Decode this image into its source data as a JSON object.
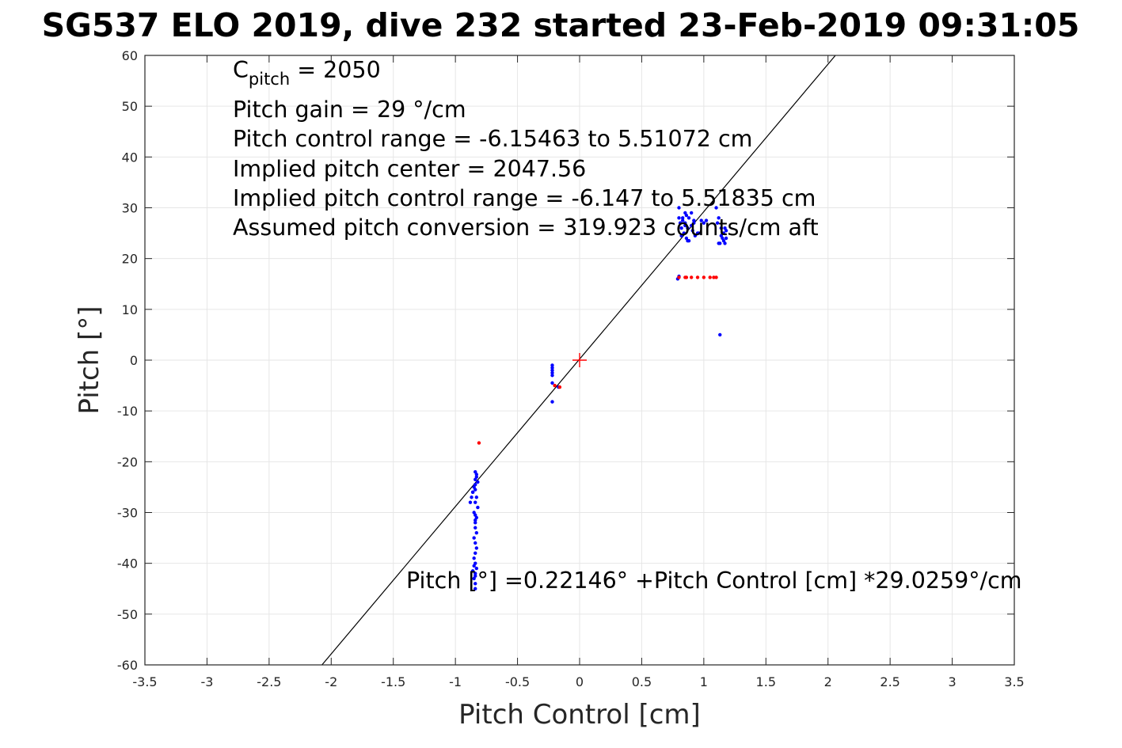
{
  "figure": {
    "title": "SG537 ELO 2019, dive 232 started 23-Feb-2019 09:31:05"
  },
  "chart_data": {
    "type": "scatter",
    "title": "SG537 ELO 2019, dive 232 started 23-Feb-2019 09:31:05",
    "xlabel": "Pitch Control [cm]",
    "ylabel": "Pitch [°]",
    "xlim": [
      -3.5,
      3.5
    ],
    "ylim": [
      -60,
      60
    ],
    "xticks": [
      -3.5,
      -3,
      -2.5,
      -2,
      -1.5,
      -1,
      -0.5,
      0,
      0.5,
      1,
      1.5,
      2,
      2.5,
      3,
      3.5
    ],
    "xtick_labels": [
      "-3.5",
      "-3",
      "-2.5",
      "-2",
      "-1.5",
      "-1",
      "-0.5",
      "0",
      "0.5",
      "1",
      "1.5",
      "2",
      "2.5",
      "3",
      "3.5"
    ],
    "yticks": [
      -60,
      -50,
      -40,
      -30,
      -20,
      -10,
      0,
      10,
      20,
      30,
      40,
      50,
      60
    ],
    "ytick_labels": [
      "-60",
      "-50",
      "-40",
      "-30",
      "-20",
      "-10",
      "0",
      "10",
      "20",
      "30",
      "40",
      "50",
      "60"
    ],
    "grid": true,
    "colors": {
      "series_blue": "#0000ff",
      "series_red": "#ff0000",
      "fit_line": "#000000",
      "grid": "#e6e6e6",
      "axes": "#262626"
    },
    "series": [
      {
        "color": "#0000ff",
        "x": [
          -0.84,
          -0.83,
          -0.82,
          -0.85,
          -0.86,
          -0.83,
          -0.84,
          -0.82,
          -0.85,
          -0.83,
          -0.84,
          -0.86,
          -0.87,
          -0.88,
          -0.84,
          -0.83,
          -0.85,
          -0.84,
          -0.83,
          -0.84,
          -0.85,
          -0.84,
          -0.83,
          -0.84,
          -0.85,
          -0.84,
          -0.84,
          -0.83,
          -0.84,
          -0.84,
          -0.84,
          -0.84,
          -0.84,
          -0.85,
          -0.86,
          -0.84,
          -0.22,
          -0.22,
          -0.22,
          -0.22,
          -0.22,
          -0.22,
          -0.22,
          -0.17,
          0.8,
          0.81,
          0.82,
          0.83,
          0.84,
          0.85,
          0.86,
          0.87,
          0.88,
          0.9,
          0.92,
          0.95,
          0.82,
          0.85,
          0.88,
          0.91,
          0.83,
          0.86,
          0.9,
          0.93,
          0.8,
          0.85,
          0.87,
          0.92,
          0.96,
          0.98,
          1.0,
          1.02,
          1.1,
          1.12,
          1.14,
          1.15,
          1.16,
          1.17,
          1.18,
          1.13,
          1.15,
          1.17,
          1.11,
          1.14,
          1.16,
          1.18,
          1.12,
          0.79,
          0.8,
          1.13
        ],
        "y": [
          -22,
          -23,
          -24,
          -25,
          -26,
          -27,
          -28,
          -29,
          -30,
          -31,
          -32,
          -26,
          -27,
          -28,
          -33,
          -34,
          -35,
          -36,
          -37,
          -38,
          -39,
          -40,
          -41,
          -42,
          -43,
          -44,
          -45,
          -22.5,
          -23.5,
          -24.5,
          -25.5,
          -30.5,
          -31.5,
          -40.5,
          -41.5,
          -42.5,
          -1,
          -1.5,
          -2,
          -2.5,
          -3,
          -4.5,
          -8.2,
          -5.3,
          30,
          27,
          26,
          28,
          25,
          27,
          24,
          26,
          28,
          29,
          27,
          25,
          24.5,
          26.5,
          23.5,
          25.5,
          27.5,
          28.5,
          26.5,
          24.5,
          28,
          29,
          23.5,
          27.5,
          25,
          27.5,
          27,
          27.5,
          30,
          28,
          26,
          24,
          25,
          23,
          24,
          23,
          25,
          26,
          27,
          24.5,
          23.5,
          25.5,
          23,
          16,
          16.5,
          5
        ]
      },
      {
        "color": "#ff0000",
        "x": [
          -0.81,
          -0.2,
          -0.16,
          0.8,
          0.85,
          0.9,
          0.95,
          1.0,
          1.05,
          1.08,
          1.1,
          0.86
        ],
        "y": [
          -16.3,
          -5,
          -5.3,
          16.3,
          16.3,
          16.3,
          16.3,
          16.3,
          16.3,
          16.3,
          16.3,
          16.3
        ]
      }
    ],
    "fit_line": {
      "x": [
        -2.0743,
        2.0595
      ],
      "y": [
        -60,
        60
      ]
    },
    "center_marker": {
      "x": 0,
      "y": 0,
      "color": "#ff0000"
    },
    "annotations": {
      "cpitch_label": "C",
      "cpitch_sub": "pitch",
      "cpitch_value": " = 2050",
      "lines": [
        "Pitch gain = 29 °/cm",
        "Pitch control range = -6.15463 to 5.51072 cm",
        "Implied pitch center = 2047.56",
        "Implied pitch control range = -6.147 to 5.51835 cm",
        "Assumed pitch conversion = 319.923 counts/cm aft"
      ],
      "fit_equation": "Pitch [°] =0.22146° +Pitch Control [cm] *29.0259°/cm"
    }
  }
}
